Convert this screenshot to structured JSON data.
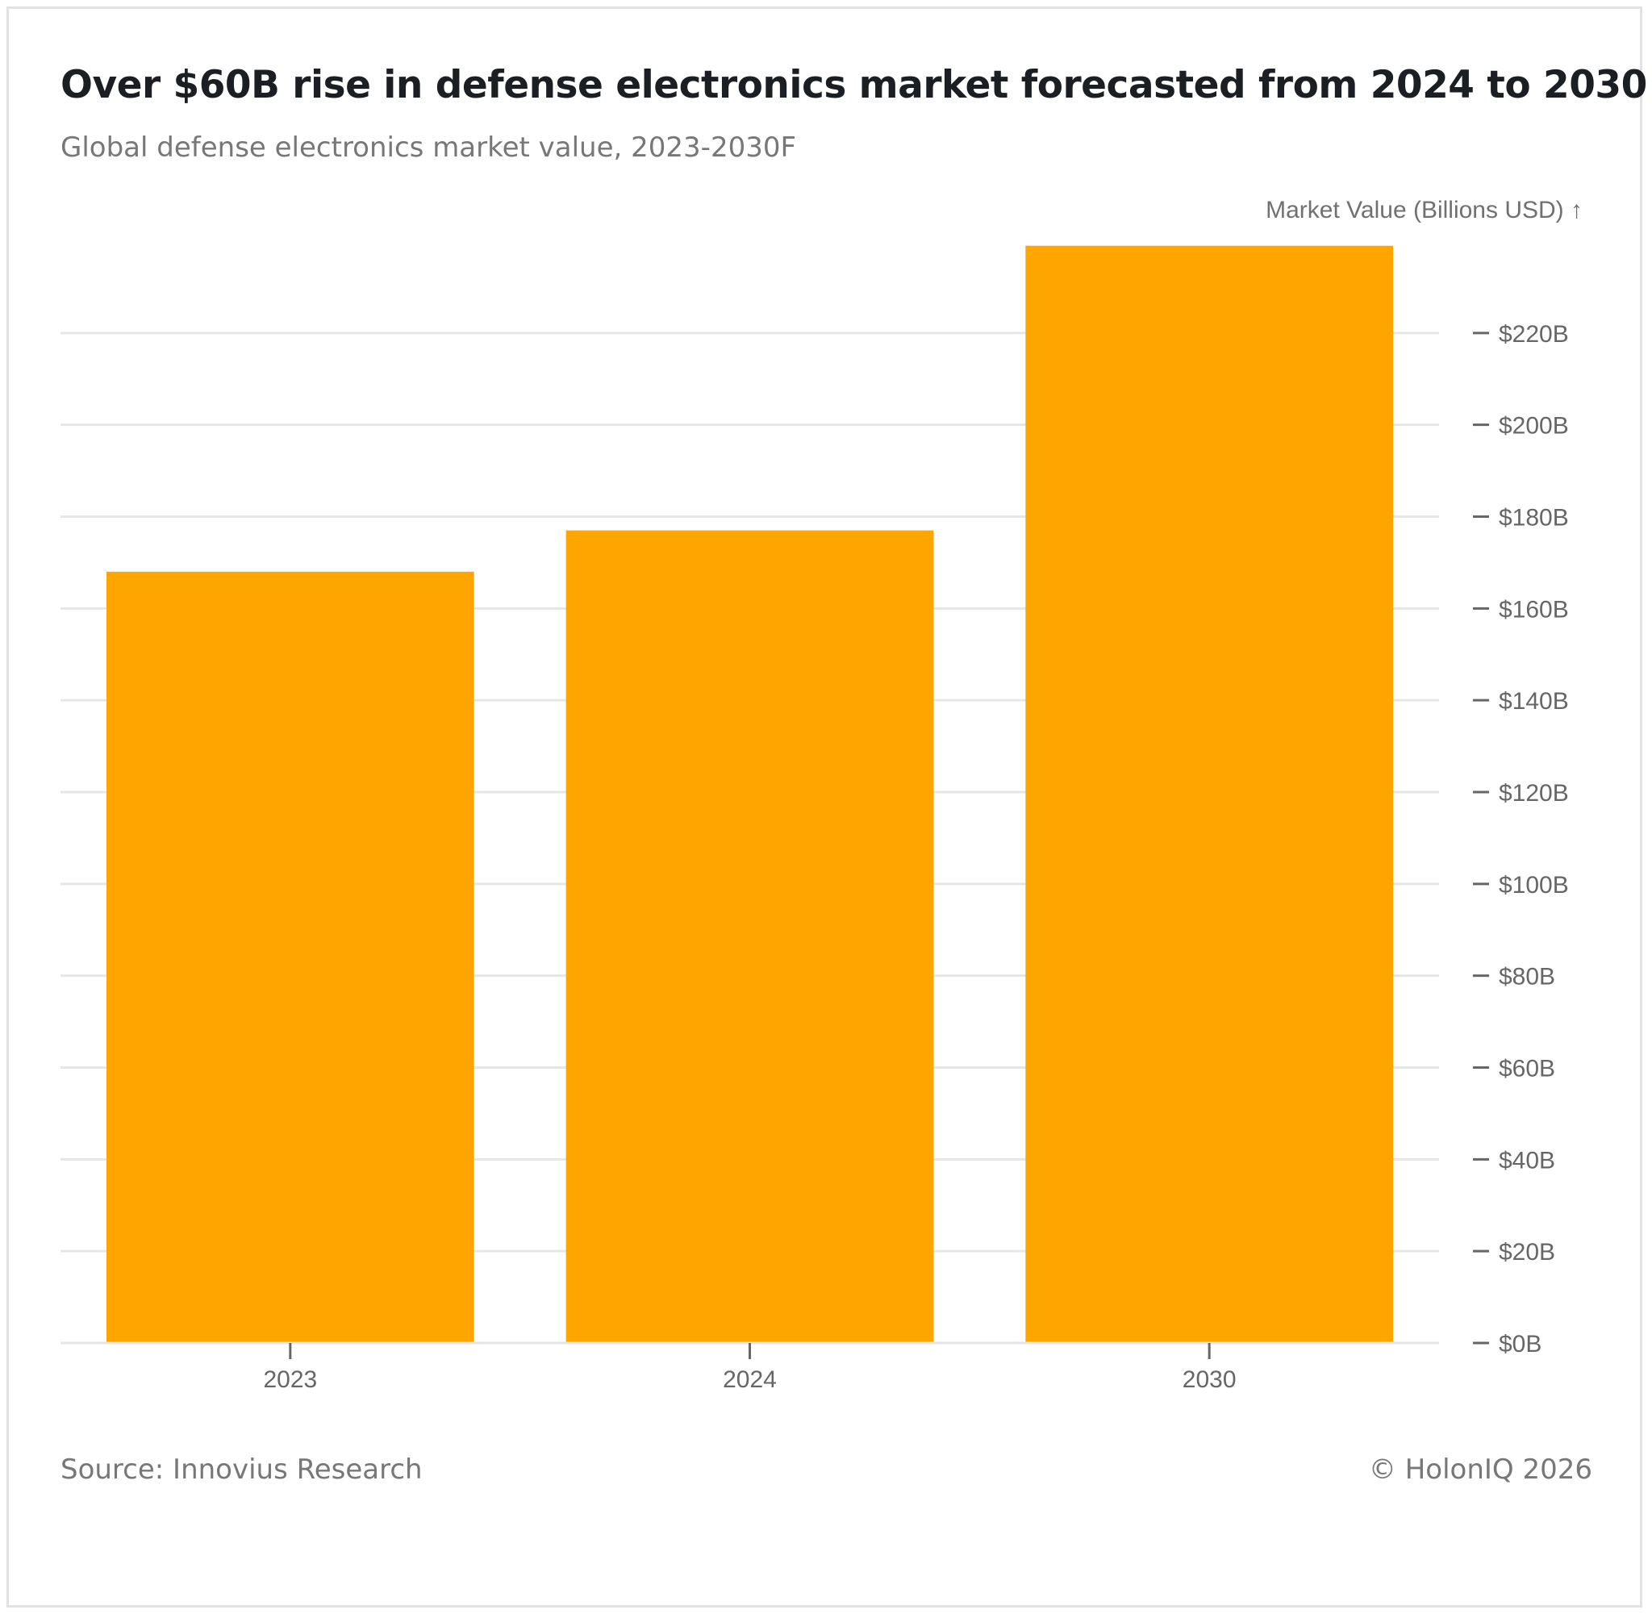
{
  "title": "Over $60B rise in defense electronics market forecasted from 2024 to 2030",
  "subtitle": "Global defense electronics market value, 2023-2030F",
  "source": "Source: Innovius Research",
  "copyright": "© HolonIQ 2026",
  "colors": {
    "bar": "#ffa500",
    "grid": "#e6e6e6",
    "axis": "#666666"
  },
  "chart_data": {
    "type": "bar",
    "categories": [
      "2023",
      "2024",
      "2030"
    ],
    "values": [
      168,
      177,
      239
    ],
    "ylabel": "Market Value (Billions USD) ↑",
    "ylim": [
      0,
      240
    ],
    "yticks": [
      0,
      20,
      40,
      60,
      80,
      100,
      120,
      140,
      160,
      180,
      200,
      220
    ],
    "ytick_labels": [
      "$0B",
      "$20B",
      "$40B",
      "$60B",
      "$80B",
      "$100B",
      "$120B",
      "$140B",
      "$160B",
      "$180B",
      "$200B",
      "$220B"
    ],
    "y_axis_position": "right",
    "grid": true,
    "legend": false
  }
}
